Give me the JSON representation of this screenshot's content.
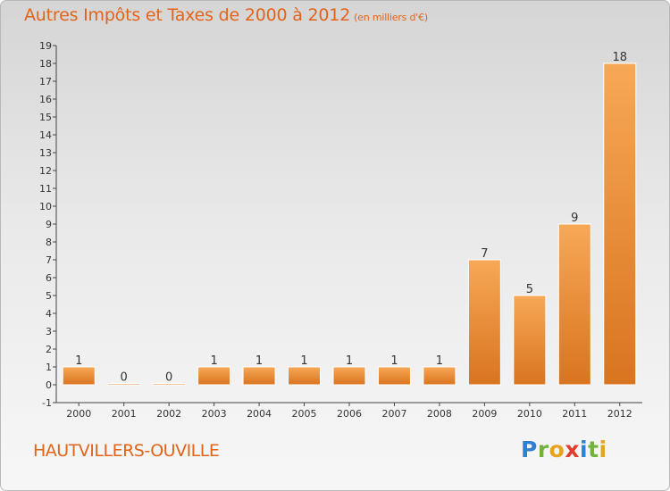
{
  "header": {
    "title": "Autres Impôts et Taxes de 2000 à 2012",
    "unit": "(en milliers d'€)"
  },
  "footer": {
    "commune": "HAUTVILLERS-OUVILLE",
    "logo": [
      "P",
      "r",
      "o",
      "x",
      "i",
      "t",
      "i"
    ]
  },
  "colors": {
    "title": "#e2641a",
    "bar_top": "#f7a856",
    "bar_bottom": "#d9741f",
    "axis": "#444444"
  },
  "chart_data": {
    "type": "bar",
    "title": "Autres Impôts et Taxes de 2000 à 2012",
    "unit": "(en milliers d'€)",
    "categories": [
      "2000",
      "2001",
      "2002",
      "2003",
      "2004",
      "2005",
      "2006",
      "2007",
      "2008",
      "2009",
      "2010",
      "2011",
      "2012"
    ],
    "values": [
      1,
      0,
      0,
      1,
      1,
      1,
      1,
      1,
      1,
      7,
      5,
      9,
      18
    ],
    "data_labels": [
      "1",
      "0",
      "0",
      "1",
      "1",
      "1",
      "1",
      "1",
      "1",
      "7",
      "5",
      "9",
      "18"
    ],
    "y_ticks": [
      "-1",
      "0",
      "1",
      "2",
      "3",
      "4",
      "5",
      "6",
      "7",
      "8",
      "9",
      "10",
      "11",
      "12",
      "13",
      "14",
      "15",
      "16",
      "17",
      "18",
      "19"
    ],
    "ylim": [
      -1,
      19
    ],
    "grid": false,
    "legend": "none"
  }
}
